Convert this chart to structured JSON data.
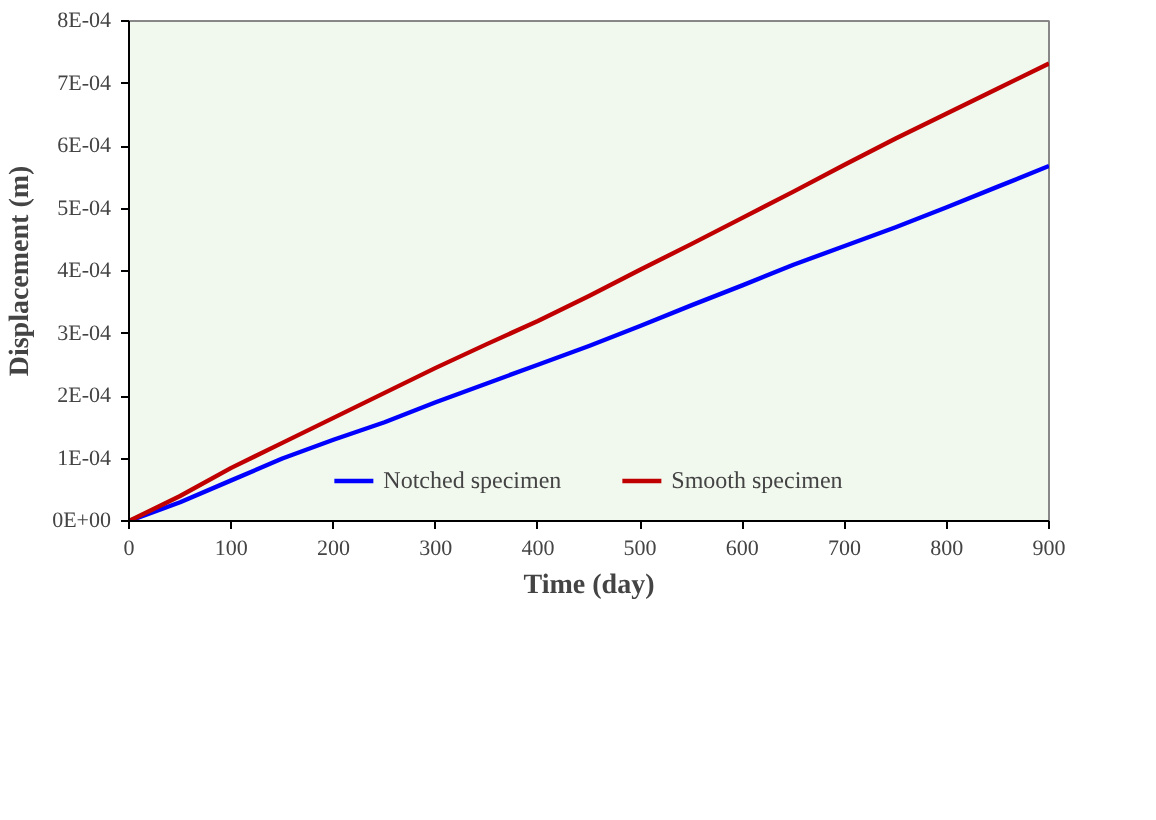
{
  "chart_data": {
    "type": "line",
    "xlabel": "Time (day)",
    "ylabel": "Displacement (m)",
    "x": [
      0,
      50,
      100,
      150,
      200,
      250,
      300,
      350,
      400,
      450,
      500,
      550,
      600,
      650,
      700,
      750,
      800,
      850,
      900
    ],
    "series": [
      {
        "name": "Notched specimen",
        "color": "#0000ff",
        "values": [
          0,
          3e-05,
          6.5e-05,
          0.0001,
          0.00013,
          0.000158,
          0.00019,
          0.00022,
          0.00025,
          0.00028,
          0.000312,
          0.000345,
          0.000377,
          0.00041,
          0.00044,
          0.00047,
          0.000502,
          0.000535,
          0.000568
        ]
      },
      {
        "name": "Smooth specimen",
        "color": "#c00000",
        "values": [
          0,
          4e-05,
          8.5e-05,
          0.000125,
          0.000165,
          0.000205,
          0.000245,
          0.000283,
          0.00032,
          0.00036,
          0.000402,
          0.000443,
          0.000485,
          0.000527,
          0.00057,
          0.000612,
          0.000652,
          0.000692,
          0.000732
        ]
      }
    ],
    "xlim": [
      0,
      900
    ],
    "xticks": [
      0,
      100,
      200,
      300,
      400,
      500,
      600,
      700,
      800,
      900
    ],
    "ylim": [
      0,
      0.0008
    ],
    "yticks": [
      {
        "value": 0,
        "label": "0E+00"
      },
      {
        "value": 0.0001,
        "label": "1E-04"
      },
      {
        "value": 0.0002,
        "label": "2E-04"
      },
      {
        "value": 0.0003,
        "label": "3E-04"
      },
      {
        "value": 0.0004,
        "label": "4E-04"
      },
      {
        "value": 0.0005,
        "label": "5E-04"
      },
      {
        "value": 0.0006,
        "label": "6E-04"
      },
      {
        "value": 0.0007,
        "label": "7E-04"
      },
      {
        "value": 0.0008,
        "label": "8E-04"
      }
    ],
    "legend": "bottom",
    "grid": false,
    "marker": "none",
    "line_style": "solid"
  }
}
